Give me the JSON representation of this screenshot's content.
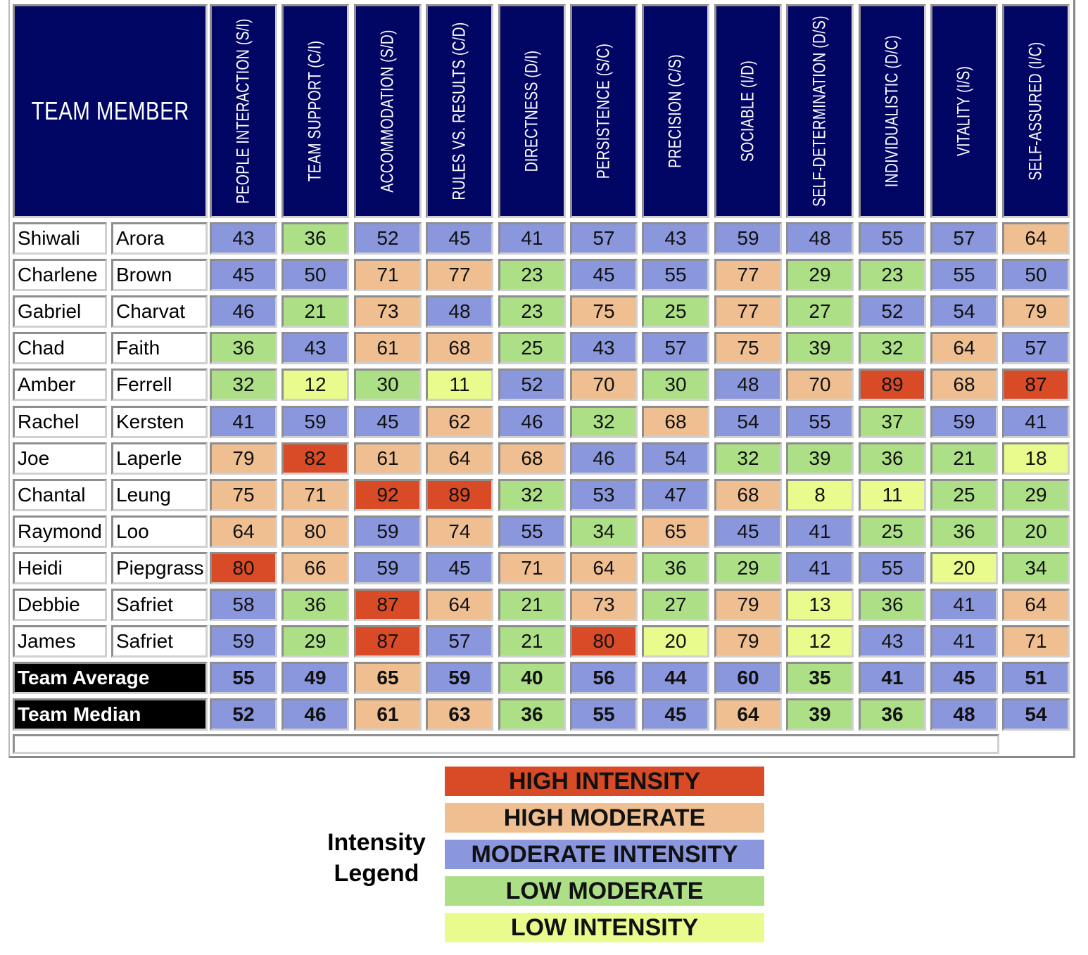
{
  "header": {
    "member_label": "TEAM MEMBER",
    "columns": [
      "PEOPLE INTERACTION (S/I)",
      "TEAM SUPPORT (C/I)",
      "ACCOMMODATION (S/D)",
      "RULES VS. RESULTS (C/D)",
      "DIRECTNESS (D/I)",
      "PERSISTENCE (S/C)",
      "PRECISION (C/S)",
      "SOCIABLE (I/D)",
      "SELF-DETERMINATION (D/S)",
      "INDIVIDUALISTIC (D/C)",
      "VITALITY (I/S)",
      "SELF-ASSURED (I/C)"
    ]
  },
  "rows": [
    {
      "first": "Shiwali",
      "last": "Arora",
      "values": [
        "43",
        "36",
        "52",
        "45",
        "41",
        "57",
        "43",
        "59",
        "48",
        "55",
        "57",
        "64"
      ],
      "levels": [
        "mi",
        "lm",
        "mi",
        "mi",
        "mi",
        "mi",
        "mi",
        "mi",
        "mi",
        "mi",
        "mi",
        "hm"
      ]
    },
    {
      "first": "Charlene",
      "last": "Brown",
      "values": [
        "45",
        "50",
        "71",
        "77",
        "23",
        "45",
        "55",
        "77",
        "29",
        "23",
        "55",
        "50"
      ],
      "levels": [
        "mi",
        "mi",
        "hm",
        "hm",
        "lm",
        "mi",
        "mi",
        "hm",
        "lm",
        "lm",
        "mi",
        "mi"
      ]
    },
    {
      "first": "Gabriel",
      "last": "Charvat",
      "values": [
        "46",
        "21",
        "73",
        "48",
        "23",
        "75",
        "25",
        "77",
        "27",
        "52",
        "54",
        "79"
      ],
      "levels": [
        "mi",
        "lm",
        "hm",
        "mi",
        "lm",
        "hm",
        "lm",
        "hm",
        "lm",
        "mi",
        "mi",
        "hm"
      ]
    },
    {
      "first": "Chad",
      "last": "Faith",
      "values": [
        "36",
        "43",
        "61",
        "68",
        "25",
        "43",
        "57",
        "75",
        "39",
        "32",
        "64",
        "57"
      ],
      "levels": [
        "lm",
        "mi",
        "hm",
        "hm",
        "lm",
        "mi",
        "mi",
        "hm",
        "lm",
        "lm",
        "hm",
        "mi"
      ]
    },
    {
      "first": "Amber",
      "last": "Ferrell",
      "values": [
        "32",
        "12",
        "30",
        "11",
        "52",
        "70",
        "30",
        "48",
        "70",
        "89",
        "68",
        "87"
      ],
      "levels": [
        "lm",
        "li",
        "lm",
        "li",
        "mi",
        "hm",
        "lm",
        "mi",
        "hm",
        "hi",
        "hm",
        "hi"
      ]
    },
    {
      "first": "Rachel",
      "last": "Kersten",
      "values": [
        "41",
        "59",
        "45",
        "62",
        "46",
        "32",
        "68",
        "54",
        "55",
        "37",
        "59",
        "41"
      ],
      "levels": [
        "mi",
        "mi",
        "mi",
        "hm",
        "mi",
        "lm",
        "hm",
        "mi",
        "mi",
        "lm",
        "mi",
        "mi"
      ]
    },
    {
      "first": "Joe",
      "last": "Laperle",
      "values": [
        "79",
        "82",
        "61",
        "64",
        "68",
        "46",
        "54",
        "32",
        "39",
        "36",
        "21",
        "18"
      ],
      "levels": [
        "hm",
        "hi",
        "hm",
        "hm",
        "hm",
        "mi",
        "mi",
        "lm",
        "lm",
        "lm",
        "lm",
        "li"
      ]
    },
    {
      "first": "Chantal",
      "last": "Leung",
      "values": [
        "75",
        "71",
        "92",
        "89",
        "32",
        "53",
        "47",
        "68",
        "8",
        "11",
        "25",
        "29"
      ],
      "levels": [
        "hm",
        "hm",
        "hi",
        "hi",
        "lm",
        "mi",
        "mi",
        "hm",
        "li",
        "li",
        "lm",
        "lm"
      ]
    },
    {
      "first": "Raymond",
      "last": "Loo",
      "values": [
        "64",
        "80",
        "59",
        "74",
        "55",
        "34",
        "65",
        "45",
        "41",
        "25",
        "36",
        "20"
      ],
      "levels": [
        "hm",
        "hm",
        "mi",
        "hm",
        "mi",
        "lm",
        "hm",
        "mi",
        "mi",
        "lm",
        "lm",
        "lm"
      ]
    },
    {
      "first": "Heidi",
      "last": "Piepgrass",
      "values": [
        "80",
        "66",
        "59",
        "45",
        "71",
        "64",
        "36",
        "29",
        "41",
        "55",
        "20",
        "34"
      ],
      "levels": [
        "hi",
        "hm",
        "mi",
        "mi",
        "hm",
        "hm",
        "lm",
        "lm",
        "mi",
        "mi",
        "li",
        "lm"
      ]
    },
    {
      "first": "Debbie",
      "last": "Safriet",
      "values": [
        "58",
        "36",
        "87",
        "64",
        "21",
        "73",
        "27",
        "79",
        "13",
        "36",
        "41",
        "64"
      ],
      "levels": [
        "mi",
        "lm",
        "hi",
        "hm",
        "lm",
        "hm",
        "lm",
        "hm",
        "li",
        "lm",
        "mi",
        "hm"
      ]
    },
    {
      "first": "James",
      "last": "Safriet",
      "values": [
        "59",
        "29",
        "87",
        "57",
        "21",
        "80",
        "20",
        "79",
        "12",
        "43",
        "41",
        "71"
      ],
      "levels": [
        "mi",
        "lm",
        "hi",
        "mi",
        "lm",
        "hi",
        "li",
        "hm",
        "li",
        "mi",
        "mi",
        "hm"
      ]
    }
  ],
  "summary": [
    {
      "label": "Team Average",
      "values": [
        "55",
        "49",
        "65",
        "59",
        "40",
        "56",
        "44",
        "60",
        "35",
        "41",
        "45",
        "51"
      ],
      "levels": [
        "mi",
        "mi",
        "hm",
        "mi",
        "lm",
        "mi",
        "mi",
        "mi",
        "lm",
        "mi",
        "mi",
        "mi"
      ]
    },
    {
      "label": "Team Median",
      "values": [
        "52",
        "46",
        "61",
        "63",
        "36",
        "55",
        "45",
        "64",
        "39",
        "36",
        "48",
        "54"
      ],
      "levels": [
        "mi",
        "mi",
        "hm",
        "hm",
        "lm",
        "mi",
        "mi",
        "hm",
        "lm",
        "lm",
        "mi",
        "mi"
      ]
    }
  ],
  "legend": {
    "title_line1": "Intensity",
    "title_line2": "Legend",
    "items": [
      {
        "key": "hi",
        "label": "HIGH INTENSITY",
        "color": "#d84b26"
      },
      {
        "key": "hm",
        "label": "HIGH MODERATE",
        "color": "#efbf92"
      },
      {
        "key": "mi",
        "label": "MODERATE INTENSITY",
        "color": "#8a97dd"
      },
      {
        "key": "lm",
        "label": "LOW MODERATE",
        "color": "#acdf86"
      },
      {
        "key": "li",
        "label": "LOW INTENSITY",
        "color": "#e8fb8c"
      }
    ]
  }
}
